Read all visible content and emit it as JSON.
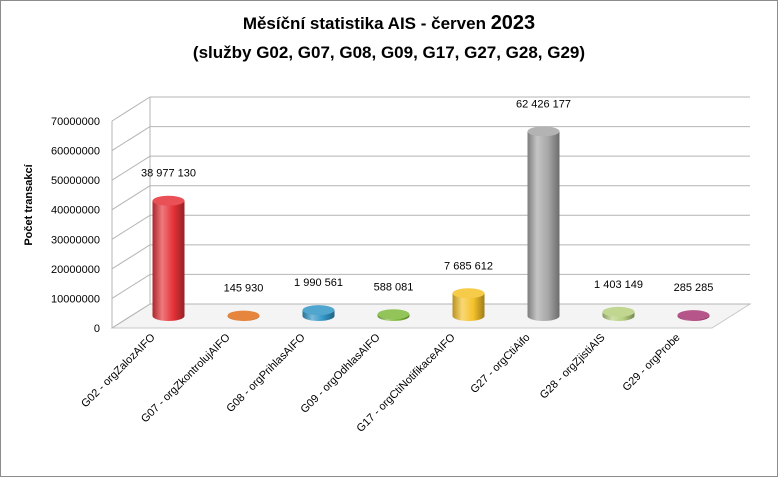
{
  "title_line1": "Měsíční statistika AIS -  červen",
  "title_year": "2023",
  "title_line2": "(služby  G02, G07, G08, G09, G17, G27, G28, G29)",
  "chart_data": {
    "type": "bar",
    "title": "Měsíční statistika AIS -  červen 2023 (služby  G02, G07, G08, G09, G17, G27, G28, G29)",
    "ylabel": "Počet transakcí",
    "xlabel": "",
    "ylim": [
      0,
      70000000
    ],
    "yticks": [
      0,
      10000000,
      20000000,
      30000000,
      40000000,
      50000000,
      60000000,
      70000000
    ],
    "ytick_labels": [
      "0",
      "10000000",
      "20000000",
      "30000000",
      "40000000",
      "50000000",
      "60000000",
      "70000000"
    ],
    "grid": true,
    "categories": [
      "G02 - orgZalozAIFO",
      "G07 - orgZkontrolujAIFO",
      "G08 - orgPrihlasAIFO",
      "G09 - orgOdhlasAIFO",
      "G17 - orgCtiNotifikaceAIFO",
      "G27 - orgCtiAifo",
      "G28 - orgZjistiAIS",
      "G29 - orgProbe"
    ],
    "values": [
      38977130,
      145930,
      1990561,
      588081,
      7685612,
      62426177,
      1403149,
      285285
    ],
    "data_labels": [
      "38 977 130",
      "145 930",
      "1 990 561",
      "588 081",
      "7 685 612",
      "62 426 177",
      "1 403 149",
      "285 285"
    ],
    "colors": [
      "#e53238",
      "#e2701b",
      "#3296c8",
      "#7fba3c",
      "#f5c22a",
      "#a6a6a6",
      "#b6d07e",
      "#a83774"
    ]
  }
}
